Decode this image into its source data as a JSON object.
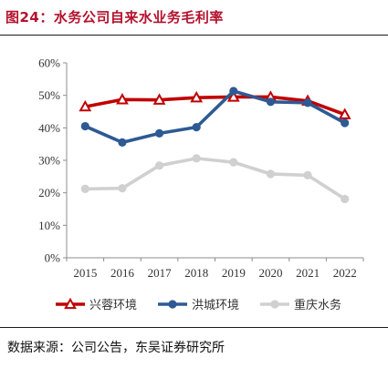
{
  "figure_title": "图24：水务公司自来水业务毛利率",
  "source_note": "数据来源：公司公告，东吴证券研究所",
  "chart_data": {
    "type": "line",
    "categories": [
      "2015",
      "2016",
      "2017",
      "2018",
      "2019",
      "2020",
      "2021",
      "2022"
    ],
    "y_ticks": [
      "0%",
      "10%",
      "20%",
      "30%",
      "40%",
      "50%",
      "60%"
    ],
    "ylim": [
      0,
      60
    ],
    "y_unit": "%",
    "grid": false,
    "legend_position": "bottom",
    "series": [
      {
        "name": "兴蓉环境",
        "color": "#c00000",
        "marker": "triangle",
        "values": [
          46.5,
          48.7,
          48.6,
          49.3,
          49.5,
          49.5,
          48.3,
          44.1
        ]
      },
      {
        "name": "洪城环境",
        "color": "#2e5a93",
        "marker": "circle",
        "values": [
          40.5,
          35.5,
          38.3,
          40.2,
          51.3,
          48.0,
          47.7,
          41.5
        ]
      },
      {
        "name": "重庆水务",
        "color": "#d0d0d0",
        "marker": "circle",
        "values": [
          21.2,
          21.4,
          28.4,
          30.6,
          29.4,
          25.8,
          25.4,
          18.1
        ]
      }
    ]
  }
}
